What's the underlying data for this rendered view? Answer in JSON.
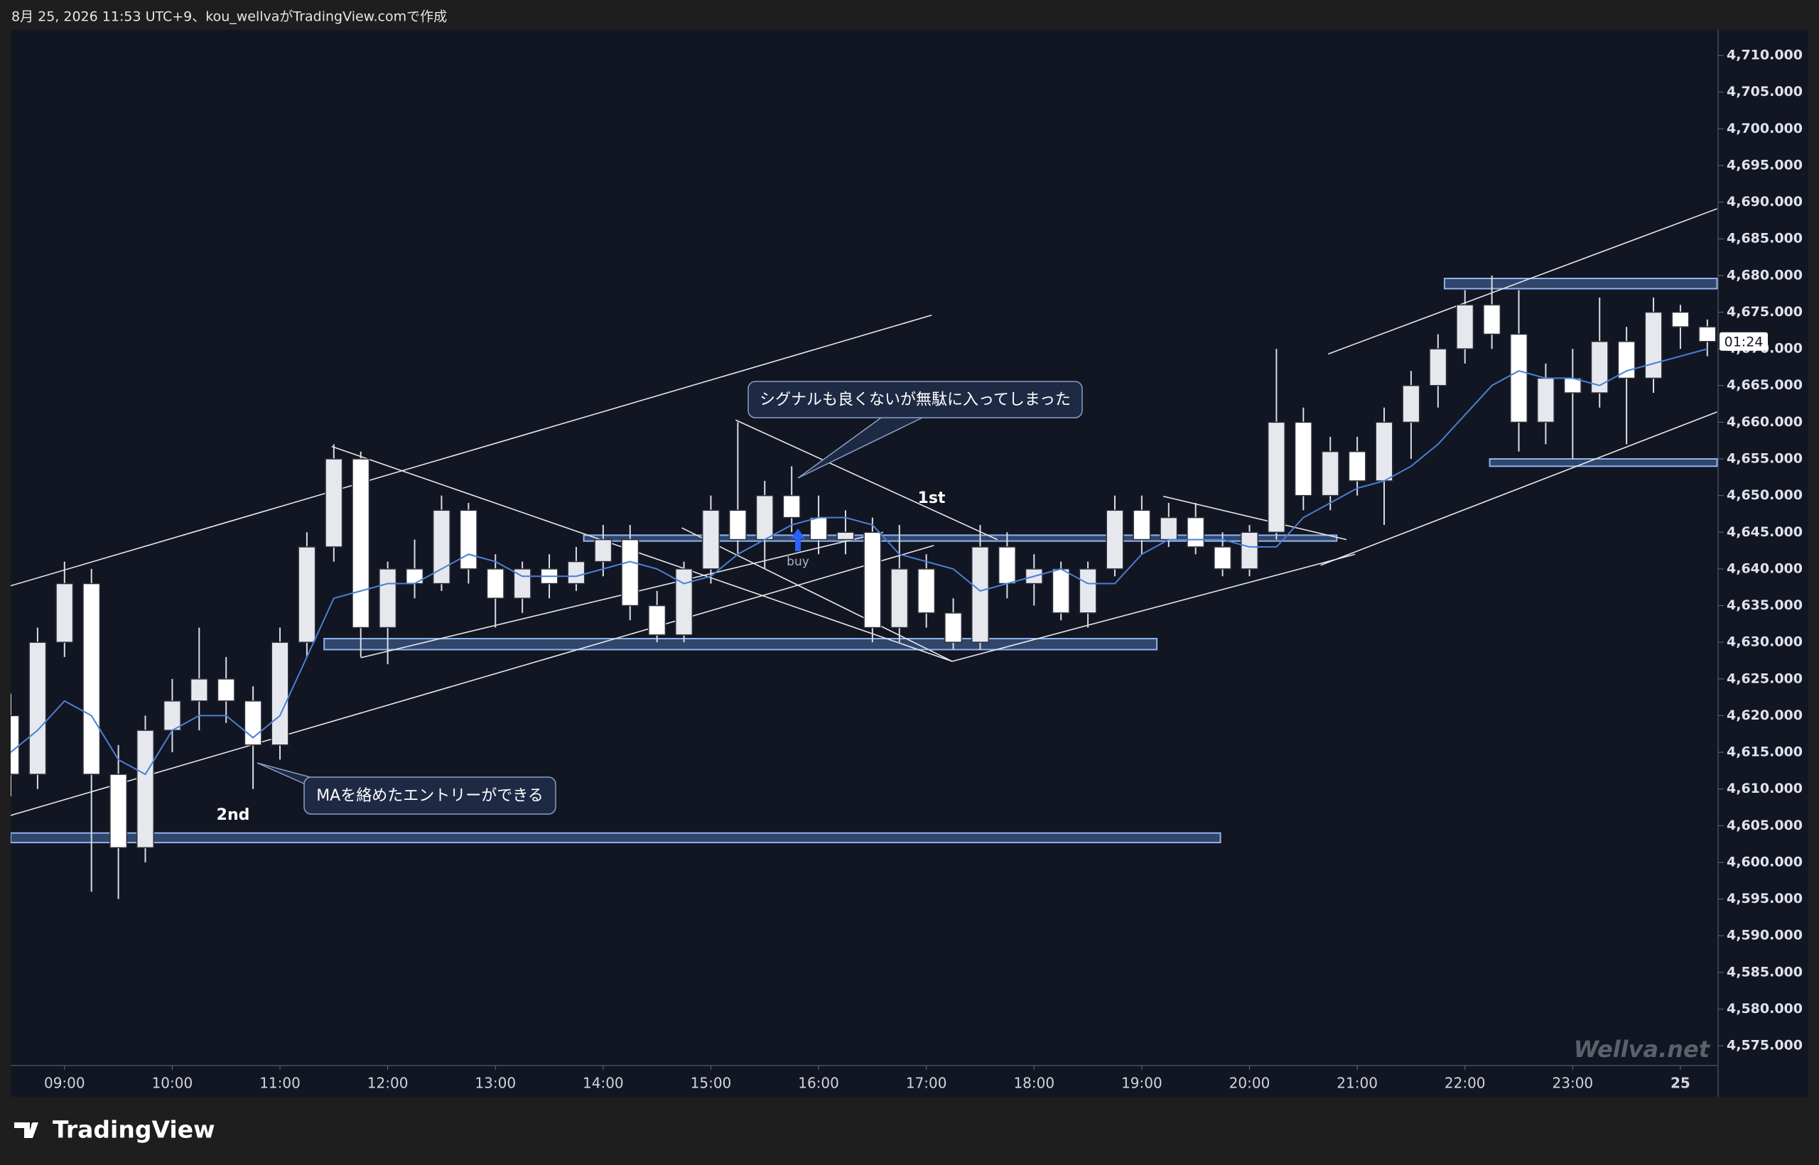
{
  "header": "8月 25, 2026 11:53 UTC+9、kou_wellvaがTradingView.comで作成",
  "footer": "TradingView",
  "watermark": "Wellva.net",
  "countdown": "01:24",
  "chart_data": {
    "type": "candlestick",
    "x": [
      8.5,
      8.75,
      9,
      9.25,
      9.5,
      9.75,
      10,
      10.25,
      10.5,
      10.75,
      11,
      11.25,
      11.5,
      11.75,
      12,
      12.25,
      12.5,
      12.75,
      13,
      13.25,
      13.5,
      13.75,
      14,
      14.25,
      14.5,
      14.75,
      15,
      15.25,
      15.5,
      15.75,
      16,
      16.25,
      16.5,
      16.75,
      17,
      17.25,
      17.5,
      17.75,
      18,
      18.25,
      18.5,
      18.75,
      19,
      19.25,
      19.5,
      19.75,
      20,
      20.25,
      20.5,
      20.75,
      21,
      21.25,
      21.5,
      21.75,
      22,
      22.25,
      22.5,
      22.75,
      23,
      23.25,
      23.5,
      23.75,
      24,
      24.25
    ],
    "open": [
      4620,
      4612,
      4630,
      4638,
      4612,
      4602,
      4618,
      4622,
      4625,
      4622,
      4616,
      4630,
      4643,
      4655,
      4632,
      4640,
      4638,
      4648,
      4640,
      4636,
      4640,
      4638,
      4641,
      4644,
      4635,
      4631,
      4640,
      4648,
      4644,
      4650,
      4647,
      4644,
      4645,
      4632,
      4640,
      4634,
      4630,
      4643,
      4638,
      4640,
      4634,
      4640,
      4648,
      4644,
      4647,
      4643,
      4640,
      4645,
      4660,
      4650,
      4656,
      4652,
      4660,
      4665,
      4670,
      4676,
      4672,
      4660,
      4666,
      4664,
      4671,
      4666,
      4675,
      4673
    ],
    "high": [
      4623,
      4632,
      4641,
      4640,
      4616,
      4620,
      4625,
      4632,
      4628,
      4624,
      4632,
      4645,
      4657,
      4656,
      4641,
      4644,
      4650,
      4649,
      4642,
      4641,
      4642,
      4643,
      4646,
      4646,
      4637,
      4641,
      4650,
      4660,
      4652,
      4654,
      4650,
      4648,
      4647,
      4646,
      4642,
      4636,
      4646,
      4645,
      4642,
      4641,
      4641,
      4650,
      4650,
      4649,
      4649,
      4645,
      4646,
      4670,
      4662,
      4658,
      4658,
      4662,
      4667,
      4672,
      4678,
      4680,
      4678,
      4668,
      4670,
      4677,
      4673,
      4677,
      4676,
      4674
    ],
    "low": [
      4609,
      4610,
      4628,
      4596,
      4595,
      4600,
      4615,
      4618,
      4619,
      4610,
      4614,
      4628,
      4641,
      4628,
      4627,
      4636,
      4637,
      4638,
      4632,
      4634,
      4636,
      4637,
      4639,
      4633,
      4630,
      4630,
      4638,
      4642,
      4640,
      4645,
      4642,
      4642,
      4630,
      4630,
      4632,
      4629,
      4629,
      4636,
      4635,
      4633,
      4632,
      4639,
      4642,
      4643,
      4642,
      4639,
      4639,
      4644,
      4648,
      4648,
      4650,
      4646,
      4655,
      4662,
      4668,
      4670,
      4656,
      4657,
      4655,
      4662,
      4657,
      4664,
      4670,
      4669
    ],
    "close": [
      4612,
      4630,
      4638,
      4612,
      4602,
      4618,
      4622,
      4625,
      4622,
      4616,
      4630,
      4643,
      4655,
      4632,
      4640,
      4638,
      4648,
      4640,
      4636,
      4640,
      4638,
      4641,
      4644,
      4635,
      4631,
      4640,
      4648,
      4644,
      4650,
      4647,
      4644,
      4645,
      4632,
      4640,
      4634,
      4630,
      4643,
      4638,
      4640,
      4634,
      4640,
      4648,
      4644,
      4647,
      4643,
      4640,
      4645,
      4660,
      4650,
      4656,
      4652,
      4660,
      4665,
      4670,
      4676,
      4672,
      4660,
      4666,
      4664,
      4671,
      4666,
      4675,
      4673,
      4671
    ],
    "up_color": "#e6e8ee",
    "down_color": "#ffffff",
    "ma": {
      "color": "#4a7fd6",
      "values": [
        4615,
        4618,
        4622,
        4620,
        4614,
        4612,
        4618,
        4620,
        4620,
        4617,
        4620,
        4628,
        4636,
        4637,
        4638,
        4638,
        4640,
        4642,
        4641,
        4639,
        4639,
        4639,
        4640,
        4641,
        4640,
        4638,
        4639,
        4642,
        4644,
        4646,
        4647,
        4647,
        4646,
        4642,
        4641,
        4640,
        4637,
        4638,
        4639,
        4640,
        4638,
        4638,
        4642,
        4644,
        4644,
        4644,
        4643,
        4643,
        4647,
        4649,
        4651,
        4652,
        4654,
        4657,
        4661,
        4665,
        4667,
        4666,
        4666,
        4665,
        4667,
        4668,
        4669,
        4670
      ]
    },
    "zones": [
      {
        "x": [
          11.41,
          19.14
        ],
        "y": [
          4629,
          4630.5
        ]
      },
      {
        "x": [
          13.82,
          20.81
        ],
        "y": [
          4643.8,
          4644.6
        ]
      },
      {
        "x": [
          8.5,
          19.73
        ],
        "y": [
          4602.7,
          4604
        ]
      },
      {
        "x": [
          21.81,
          24.34
        ],
        "y": [
          4678.2,
          4679.6
        ]
      },
      {
        "x": [
          22.23,
          24.34
        ],
        "y": [
          4654,
          4655
        ]
      }
    ],
    "trendlines": [
      {
        "x": [
          8.5,
          17.05
        ],
        "y": [
          4637.7,
          4674.6
        ]
      },
      {
        "x": [
          8.5,
          17.07
        ],
        "y": [
          4606.4,
          4643.2
        ]
      },
      {
        "x": [
          11.48,
          17.24
        ],
        "y": [
          4656.7,
          4627.4
        ]
      },
      {
        "x": [
          11.75,
          16.6
        ],
        "y": [
          4627.9,
          4645
        ]
      },
      {
        "x": [
          14.73,
          17.24
        ],
        "y": [
          4645.6,
          4627.4
        ]
      },
      {
        "x": [
          15.23,
          17.66
        ],
        "y": [
          4660.3,
          4644
        ]
      },
      {
        "x": [
          17.24,
          20.98
        ],
        "y": [
          4627.4,
          4642
        ]
      },
      {
        "x": [
          19.2,
          20.9
        ],
        "y": [
          4649.9,
          4644
        ]
      },
      {
        "x": [
          20.66,
          24.34
        ],
        "y": [
          4640.5,
          4661.4
        ]
      },
      {
        "x": [
          20.73,
          24.34
        ],
        "y": [
          4669.3,
          4689.1
        ]
      }
    ],
    "annotations": [
      "シグナルも良くないが無駄に入ってしまった",
      "MAを絡めたエントリーができる",
      "1st",
      "2nd",
      "buy"
    ],
    "xlim": [
      8.5,
      24.35
    ],
    "xticks": [
      {
        "value": 9,
        "label": "09:00"
      },
      {
        "value": 10,
        "label": "10:00"
      },
      {
        "value": 11,
        "label": "11:00"
      },
      {
        "value": 12,
        "label": "12:00"
      },
      {
        "value": 13,
        "label": "13:00"
      },
      {
        "value": 14,
        "label": "14:00"
      },
      {
        "value": 15,
        "label": "15:00"
      },
      {
        "value": 16,
        "label": "16:00"
      },
      {
        "value": 17,
        "label": "17:00"
      },
      {
        "value": 18,
        "label": "18:00"
      },
      {
        "value": 19,
        "label": "19:00"
      },
      {
        "value": 20,
        "label": "20:00"
      },
      {
        "value": 21,
        "label": "21:00"
      },
      {
        "value": 22,
        "label": "22:00"
      },
      {
        "value": 23,
        "label": "23:00"
      },
      {
        "value": 24,
        "label": "25"
      }
    ],
    "ylim": [
      4572.3,
      4713.2
    ],
    "yticks": [
      {
        "value": 4575,
        "label": "4,575.000"
      },
      {
        "value": 4580,
        "label": "4,580.000"
      },
      {
        "value": 4585,
        "label": "4,585.000"
      },
      {
        "value": 4590,
        "label": "4,590.000"
      },
      {
        "value": 4595,
        "label": "4,595.000"
      },
      {
        "value": 4600,
        "label": "4,600.000"
      },
      {
        "value": 4605,
        "label": "4,605.000"
      },
      {
        "value": 4610,
        "label": "4,610.000"
      },
      {
        "value": 4615,
        "label": "4,615.000"
      },
      {
        "value": 4620,
        "label": "4,620.000"
      },
      {
        "value": 4625,
        "label": "4,625.000"
      },
      {
        "value": 4630,
        "label": "4,630.000"
      },
      {
        "value": 4635,
        "label": "4,635.000"
      },
      {
        "value": 4640,
        "label": "4,640.000"
      },
      {
        "value": 4645,
        "label": "4,645.000"
      },
      {
        "value": 4650,
        "label": "4,650.000"
      },
      {
        "value": 4655,
        "label": "4,655.000"
      },
      {
        "value": 4660,
        "label": "4,660.000"
      },
      {
        "value": 4665,
        "label": "4,665.000"
      },
      {
        "value": 4670,
        "label": "4,670.000"
      },
      {
        "value": 4675,
        "label": "4,675.000"
      },
      {
        "value": 4680,
        "label": "4,680.000"
      },
      {
        "value": 4685,
        "label": "4,685.000"
      },
      {
        "value": 4690,
        "label": "4,690.000"
      },
      {
        "value": 4695,
        "label": "4,695.000"
      },
      {
        "value": 4700,
        "label": "4,700.000"
      },
      {
        "value": 4705,
        "label": "4,705.000"
      },
      {
        "value": 4710,
        "label": "4,710.000"
      }
    ]
  }
}
